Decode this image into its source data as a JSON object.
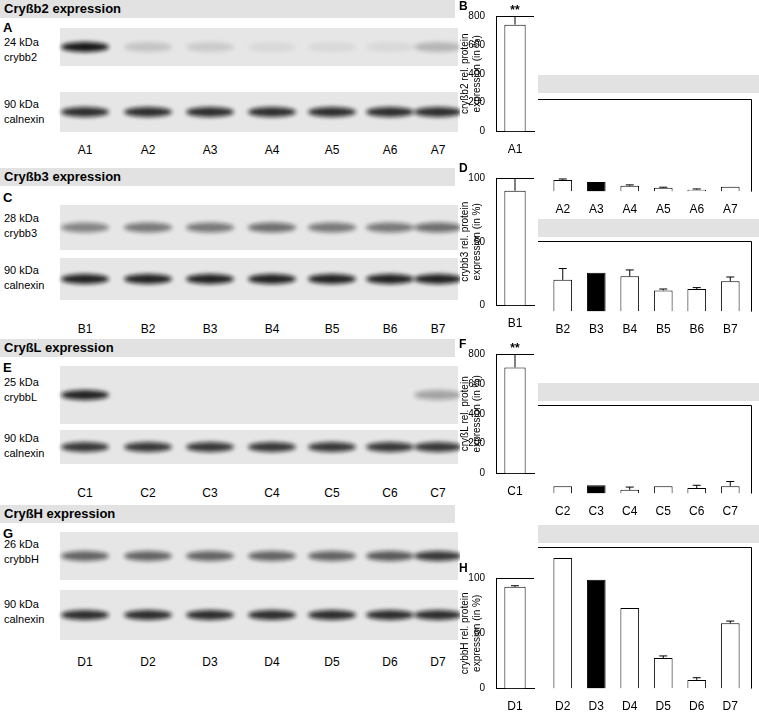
{
  "blots": [
    {
      "header": "Cryßb2 expression",
      "letter": "A",
      "lanes": [
        "A1",
        "A2",
        "A3",
        "A4",
        "A5",
        "A6",
        "A7"
      ],
      "rows": [
        {
          "kda": "24 kDa",
          "name": "crybb2",
          "intensity": [
            0.95,
            0.15,
            0.12,
            0.06,
            0.06,
            0.06,
            0.22
          ]
        },
        {
          "kda": "90 kDa",
          "name": "calnexin",
          "intensity": [
            0.85,
            0.85,
            0.85,
            0.85,
            0.85,
            0.85,
            0.85
          ]
        }
      ]
    },
    {
      "header": "Cryßb3 expression",
      "letter": "C",
      "lanes": [
        "B1",
        "B2",
        "B3",
        "B4",
        "B5",
        "B6",
        "B7"
      ],
      "rows": [
        {
          "kda": "28 kDa",
          "name": "crybb3",
          "intensity": [
            0.45,
            0.5,
            0.5,
            0.55,
            0.5,
            0.5,
            0.55
          ]
        },
        {
          "kda": "90 kDa",
          "name": "calnexin",
          "intensity": [
            0.9,
            0.9,
            0.9,
            0.9,
            0.9,
            0.9,
            0.9
          ]
        }
      ]
    },
    {
      "header": "CryßL expression",
      "letter": "E",
      "lanes": [
        "C1",
        "C2",
        "C3",
        "C4",
        "C5",
        "C6",
        "C7"
      ],
      "rows": [
        {
          "kda": "25 kDa",
          "name": "crybbL",
          "intensity": [
            0.9,
            0,
            0,
            0,
            0,
            0,
            0.3
          ]
        },
        {
          "kda": "90 kDa",
          "name": "calnexin",
          "intensity": [
            0.8,
            0.8,
            0.8,
            0.8,
            0.8,
            0.8,
            0.8
          ]
        }
      ]
    },
    {
      "header": "CryßH expression",
      "letter": "G",
      "lanes": [
        "D1",
        "D2",
        "D3",
        "D4",
        "D5",
        "D6",
        "D7"
      ],
      "rows": [
        {
          "kda": "26 kDa",
          "name": "crybbH",
          "intensity": [
            0.6,
            0.6,
            0.6,
            0.6,
            0.6,
            0.65,
            0.8
          ]
        },
        {
          "kda": "90 kDa",
          "name": "calnexin",
          "intensity": [
            0.85,
            0.85,
            0.85,
            0.85,
            0.85,
            0.85,
            0.85
          ]
        }
      ]
    }
  ],
  "chart_data": [
    {
      "type": "bar",
      "title": "B",
      "categories": [
        "A1"
      ],
      "values": [
        740
      ],
      "errors": [
        110
      ],
      "color": "#ffffff",
      "y_label": "cryßb2 rel. protein expression (in %)",
      "ylim": [
        0,
        800
      ],
      "yticks": [
        0,
        200,
        400,
        600,
        800
      ],
      "grid": false,
      "annotations": [
        {
          "category": "A1",
          "text": "**"
        }
      ]
    },
    {
      "type": "bar",
      "categories": [
        "A2",
        "A3",
        "A4",
        "A5",
        "A6",
        "A7"
      ],
      "values": [
        101,
        84,
        50,
        34,
        17,
        42
      ],
      "errors": [
        8,
        0,
        8,
        4,
        6,
        0
      ],
      "colors": [
        "#ffffff",
        "#000000",
        "#ffffff",
        "#ffffff",
        "#ffffff",
        "#ffffff"
      ],
      "ylim": [
        0,
        800
      ],
      "grid": false,
      "tick_labels": "x"
    },
    {
      "type": "bar",
      "title": "D",
      "categories": [
        "B1"
      ],
      "values": [
        90
      ],
      "errors": [
        15
      ],
      "color": "#ffffff",
      "y_label": "crybb3 rel. protein expression (in %)",
      "ylim": [
        0,
        100
      ],
      "yticks": [
        0,
        50,
        100
      ],
      "grid": false
    },
    {
      "type": "bar",
      "categories": [
        "B2",
        "B3",
        "B4",
        "B5",
        "B6",
        "B7"
      ],
      "values": [
        45,
        55,
        50,
        30,
        32,
        43
      ],
      "errors": [
        16,
        0,
        9,
        2,
        2,
        6
      ],
      "colors": [
        "#ffffff",
        "#000000",
        "#ffffff",
        "#ffffff",
        "#ffffff",
        "#ffffff"
      ],
      "ylim": [
        0,
        100
      ],
      "grid": false,
      "tick_labels": "x"
    },
    {
      "type": "bar",
      "title": "F",
      "categories": [
        "C1"
      ],
      "values": [
        710
      ],
      "errors": [
        170
      ],
      "color": "#ffffff",
      "y_label": "cryßL rel. protein expression (in %)",
      "ylim": [
        0,
        800
      ],
      "yticks": [
        0,
        200,
        400,
        600,
        800
      ],
      "grid": false,
      "annotations": [
        {
          "category": "C1",
          "text": "**"
        }
      ]
    },
    {
      "type": "bar",
      "categories": [
        "C2",
        "C3",
        "C4",
        "C5",
        "C6",
        "C7"
      ],
      "values": [
        67,
        76,
        34,
        67,
        50,
        67
      ],
      "errors": [
        0,
        0,
        25,
        0,
        25,
        42
      ],
      "colors": [
        "#ffffff",
        "#000000",
        "#ffffff",
        "#ffffff",
        "#ffffff",
        "#ffffff"
      ],
      "ylim": [
        0,
        800
      ],
      "grid": false,
      "tick_labels": "x"
    },
    {
      "type": "bar",
      "title": "H",
      "categories": [
        "D1"
      ],
      "values": [
        92
      ],
      "errors": [
        1
      ],
      "color": "#ffffff",
      "y_label": "crybbH rel. protein expression (in %)",
      "ylim": [
        0,
        100
      ],
      "yticks": [
        0,
        50,
        100
      ],
      "grid": false
    },
    {
      "type": "bar",
      "categories": [
        "D2",
        "D3",
        "D4",
        "D5",
        "D6",
        "D7"
      ],
      "values": [
        60,
        50,
        37,
        14,
        4,
        30
      ],
      "errors": [
        0,
        0,
        0,
        1,
        1,
        1
      ],
      "colors": [
        "#ffffff",
        "#000000",
        "#ffffff",
        "#ffffff",
        "#ffffff",
        "#ffffff"
      ],
      "ylim": [
        0,
        65
      ],
      "grid": false,
      "tick_labels": "x"
    }
  ]
}
